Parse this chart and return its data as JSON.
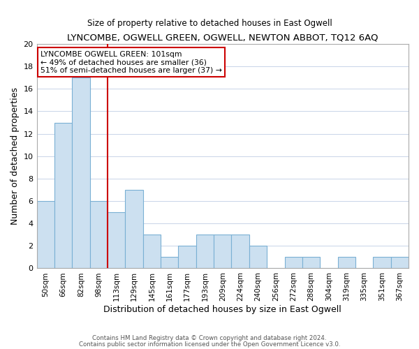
{
  "title": "LYNCOMBE, OGWELL GREEN, OGWELL, NEWTON ABBOT, TQ12 6AQ",
  "subtitle": "Size of property relative to detached houses in East Ogwell",
  "xlabel": "Distribution of detached houses by size in East Ogwell",
  "ylabel": "Number of detached properties",
  "bar_labels": [
    "50sqm",
    "66sqm",
    "82sqm",
    "98sqm",
    "113sqm",
    "129sqm",
    "145sqm",
    "161sqm",
    "177sqm",
    "193sqm",
    "209sqm",
    "224sqm",
    "240sqm",
    "256sqm",
    "272sqm",
    "288sqm",
    "304sqm",
    "319sqm",
    "335sqm",
    "351sqm",
    "367sqm"
  ],
  "bar_values": [
    6,
    13,
    17,
    6,
    5,
    7,
    3,
    1,
    2,
    3,
    3,
    3,
    2,
    0,
    1,
    1,
    0,
    1,
    0,
    1,
    1
  ],
  "bar_color": "#cce0f0",
  "bar_edgecolor": "#7ab0d4",
  "vline_color": "#cc0000",
  "ylim": [
    0,
    20
  ],
  "yticks": [
    0,
    2,
    4,
    6,
    8,
    10,
    12,
    14,
    16,
    18,
    20
  ],
  "annotation_text": "LYNCOMBE OGWELL GREEN: 101sqm\n← 49% of detached houses are smaller (36)\n51% of semi-detached houses are larger (37) →",
  "annotation_box_edgecolor": "#cc0000",
  "footer_line1": "Contains HM Land Registry data © Crown copyright and database right 2024.",
  "footer_line2": "Contains public sector information licensed under the Open Government Licence v3.0.",
  "background_color": "#ffffff",
  "grid_color": "#c8d4e8"
}
